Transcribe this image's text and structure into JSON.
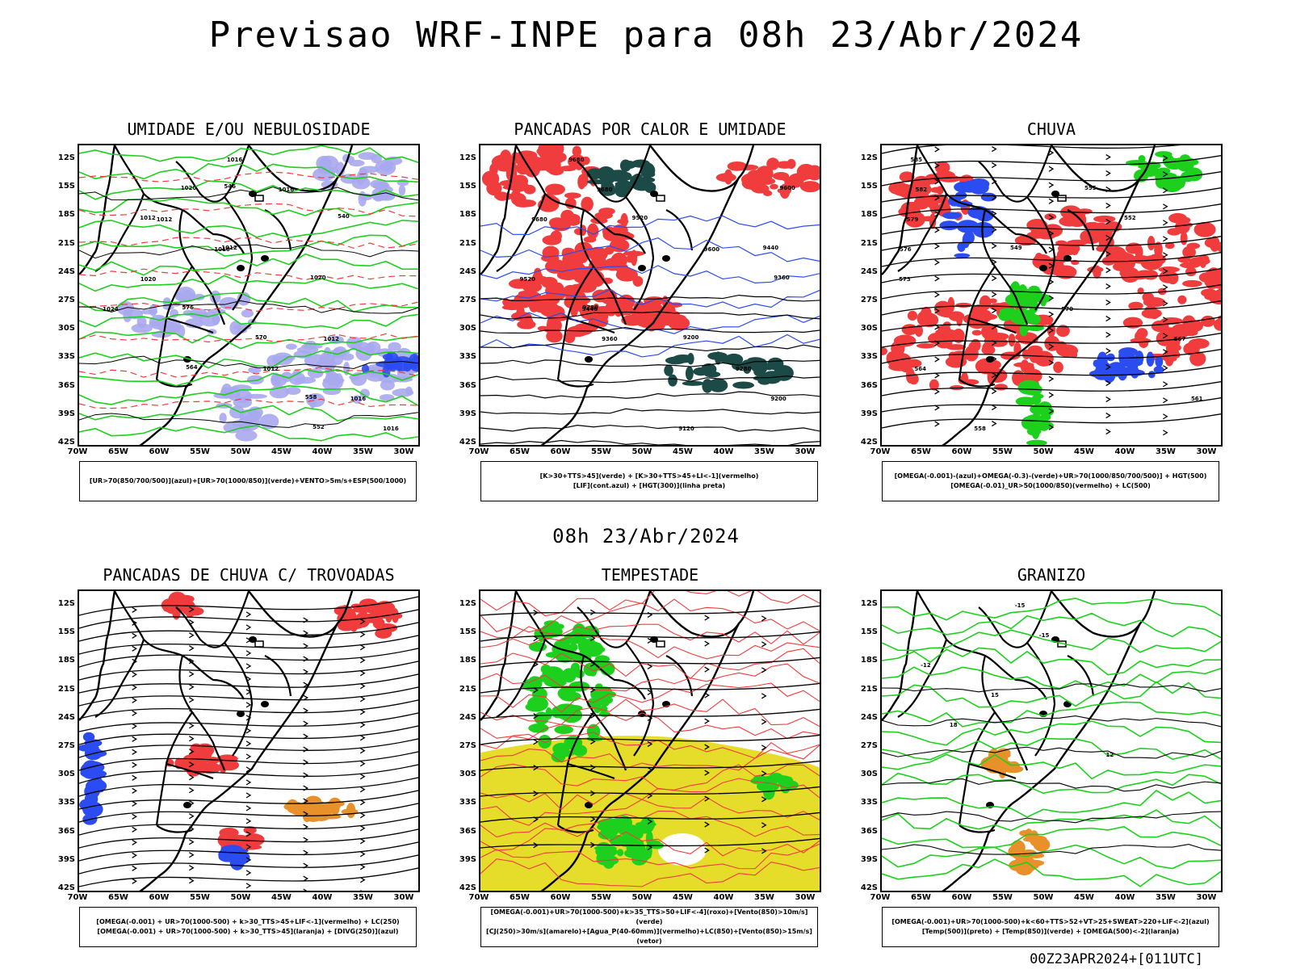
{
  "title": "Previsao WRF-INPE  para 08h 23/Abr/2024",
  "subtitle": "08h 23/Abr/2024",
  "footer": "00Z23APR2024+[011UTC]",
  "lat_labels": [
    "12S",
    "15S",
    "18S",
    "21S",
    "24S",
    "27S",
    "30S",
    "33S",
    "36S",
    "39S",
    "42S"
  ],
  "lon_labels": [
    "70W",
    "65W",
    "60W",
    "55W",
    "50W",
    "45W",
    "40W",
    "35W",
    "30W"
  ],
  "colors": {
    "red": "#f03c3c",
    "green": "#1ed01e",
    "blue": "#2b4cf0",
    "lavender": "#a9a9ee",
    "darkteal": "#1c4a46",
    "yellow": "#e6dc2a",
    "orange": "#e8902a"
  },
  "panels": [
    {
      "title": "UMIDADE E/OU NEBULOSIDADE",
      "legend": [
        "[UR>70(850/700/500)](azul)+[UR>70(1000/850)](verde)+VENTO>5m/s+ESP(500/1000)"
      ]
    },
    {
      "title": "PANCADAS POR CALOR E UMIDADE",
      "legend": [
        "[K>30+TTS>45](verde)  +  [K>30+TTS>45+LI<-1](vermelho)",
        "[LIF](cont.azul)  +  [HGT(300)](linha preta)"
      ]
    },
    {
      "title": "CHUVA",
      "legend": [
        "[OMEGA(-0.001)-(azul)+OMEGA(-0.3)-(verde)+UR>70(1000/850/700/500)]  +  HGT(500)",
        "[OMEGA(-0.01)_UR>50(1000/850)(vermelho)  +  LC(500)"
      ]
    },
    {
      "title": "PANCADAS DE CHUVA C/ TROVOADAS",
      "legend": [
        "[OMEGA(-0.001)  +  UR>70(1000-500)  +  k>30_TTS>45+LIF<-1](vermelho)  +  LC(250)",
        "[OMEGA(-0.001)  +  UR>70(1000-500)  +  k>30_TTS>45](laranja)  +  [DIVG(250)](azul)"
      ]
    },
    {
      "title": "TEMPESTADE",
      "legend": [
        "[OMEGA(-0.001)+UR>70(1000-500)+k>35_TTS>50+LIF<-4](roxo)+[Vento(850)>10m/s](verde)",
        "[CJ(250)>30m/s](amarelo)+[Agua_P(40-60mm)](vermelho)+LC(850)+[Vento(850)>15m/s](vetor)"
      ]
    },
    {
      "title": "GRANIZO",
      "legend": [
        "[OMEGA(-0.001)+UR>70(1000-500)+k<60+TTS>52+VT>25+SWEAT>220+LIF<-2](azul)",
        "[Temp(500)](preto)  +  [Temp(850)](verde)  +  [OMEGA(500)<-2](laranja)"
      ]
    }
  ],
  "contour_labels": {
    "p1": [
      "1016",
      "1016",
      "1012",
      "1016",
      "1020",
      "1024",
      "1012",
      "1012",
      "1016",
      "1016",
      "1020",
      "1012",
      "1012",
      "1020",
      "576",
      "570",
      "564",
      "558",
      "552",
      "546",
      "540"
    ],
    "p2": [
      "9680",
      "9680",
      "9680",
      "9600",
      "9520",
      "9440",
      "9360",
      "9280",
      "9200",
      "9120",
      "9600",
      "9520",
      "9440",
      "9360",
      "9280",
      "9200"
    ],
    "p3": [
      "585",
      "582",
      "579",
      "576",
      "573",
      "570",
      "567",
      "564",
      "561",
      "558",
      "555",
      "552",
      "549"
    ],
    "p6": [
      "-15",
      "-15",
      "-12",
      "15",
      "18",
      "12"
    ]
  }
}
